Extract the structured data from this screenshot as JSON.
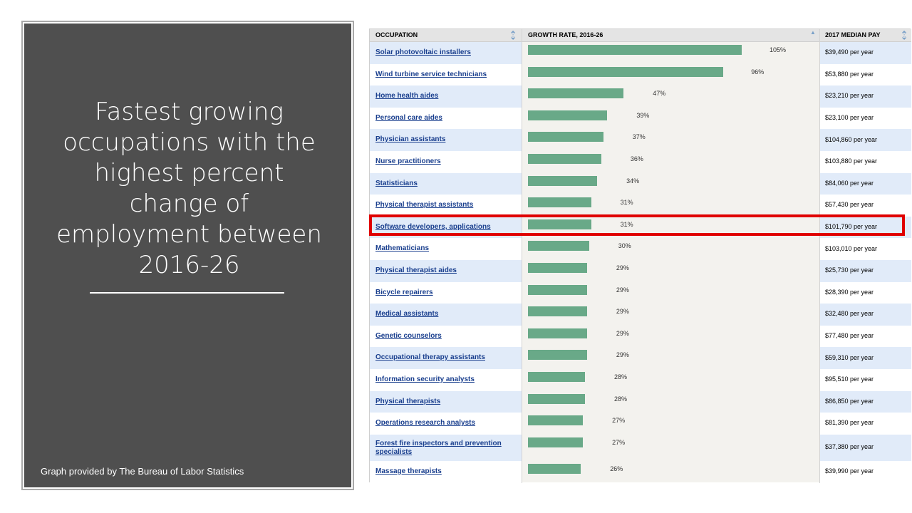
{
  "slide": {
    "title": "Fastest growing\noccupations with the\nhighest percent\nchange of\nemployment between\n2016-26",
    "caption": "Graph provided by The Bureau of Labor Statistics"
  },
  "table": {
    "headers": {
      "occupation": "OCCUPATION",
      "growth": "GROWTH RATE, 2016-26",
      "pay": "2017 MEDIAN PAY"
    },
    "bar_color": "#69a988",
    "highlight_color": "#e00000",
    "highlighted_row": "Software developers, applications",
    "rows": [
      {
        "occupation": "Solar photovoltaic installers",
        "growth": "105%",
        "growth_value": 105,
        "pay": "$39,490 per year"
      },
      {
        "occupation": "Wind turbine service technicians",
        "growth": "96%",
        "growth_value": 96,
        "pay": "$53,880 per year"
      },
      {
        "occupation": "Home health aides",
        "growth": "47%",
        "growth_value": 47,
        "pay": "$23,210 per year"
      },
      {
        "occupation": "Personal care aides",
        "growth": "39%",
        "growth_value": 39,
        "pay": "$23,100 per year"
      },
      {
        "occupation": "Physician assistants",
        "growth": "37%",
        "growth_value": 37,
        "pay": "$104,860 per year"
      },
      {
        "occupation": "Nurse practitioners",
        "growth": "36%",
        "growth_value": 36,
        "pay": "$103,880 per year"
      },
      {
        "occupation": "Statisticians",
        "growth": "34%",
        "growth_value": 34,
        "pay": "$84,060 per year"
      },
      {
        "occupation": "Physical therapist assistants",
        "growth": "31%",
        "growth_value": 31,
        "pay": "$57,430 per year"
      },
      {
        "occupation": "Software developers, applications",
        "growth": "31%",
        "growth_value": 31,
        "pay": "$101,790 per year"
      },
      {
        "occupation": "Mathematicians",
        "growth": "30%",
        "growth_value": 30,
        "pay": "$103,010 per year"
      },
      {
        "occupation": "Physical therapist aides",
        "growth": "29%",
        "growth_value": 29,
        "pay": "$25,730 per year"
      },
      {
        "occupation": "Bicycle repairers",
        "growth": "29%",
        "growth_value": 29,
        "pay": "$28,390 per year"
      },
      {
        "occupation": "Medical assistants",
        "growth": "29%",
        "growth_value": 29,
        "pay": "$32,480 per year"
      },
      {
        "occupation": "Genetic counselors",
        "growth": "29%",
        "growth_value": 29,
        "pay": "$77,480 per year"
      },
      {
        "occupation": "Occupational therapy assistants",
        "growth": "29%",
        "growth_value": 29,
        "pay": "$59,310 per year"
      },
      {
        "occupation": "Information security analysts",
        "growth": "28%",
        "growth_value": 28,
        "pay": "$95,510 per year"
      },
      {
        "occupation": "Physical therapists",
        "growth": "28%",
        "growth_value": 28,
        "pay": "$86,850 per year"
      },
      {
        "occupation": "Operations research analysts",
        "growth": "27%",
        "growth_value": 27,
        "pay": "$81,390 per year"
      },
      {
        "occupation": "Forest fire inspectors and prevention specialists",
        "growth": "27%",
        "growth_value": 27,
        "pay": "$37,380 per year"
      },
      {
        "occupation": "Massage therapists",
        "growth": "26%",
        "growth_value": 26,
        "pay": "$39,990 per year"
      }
    ]
  }
}
